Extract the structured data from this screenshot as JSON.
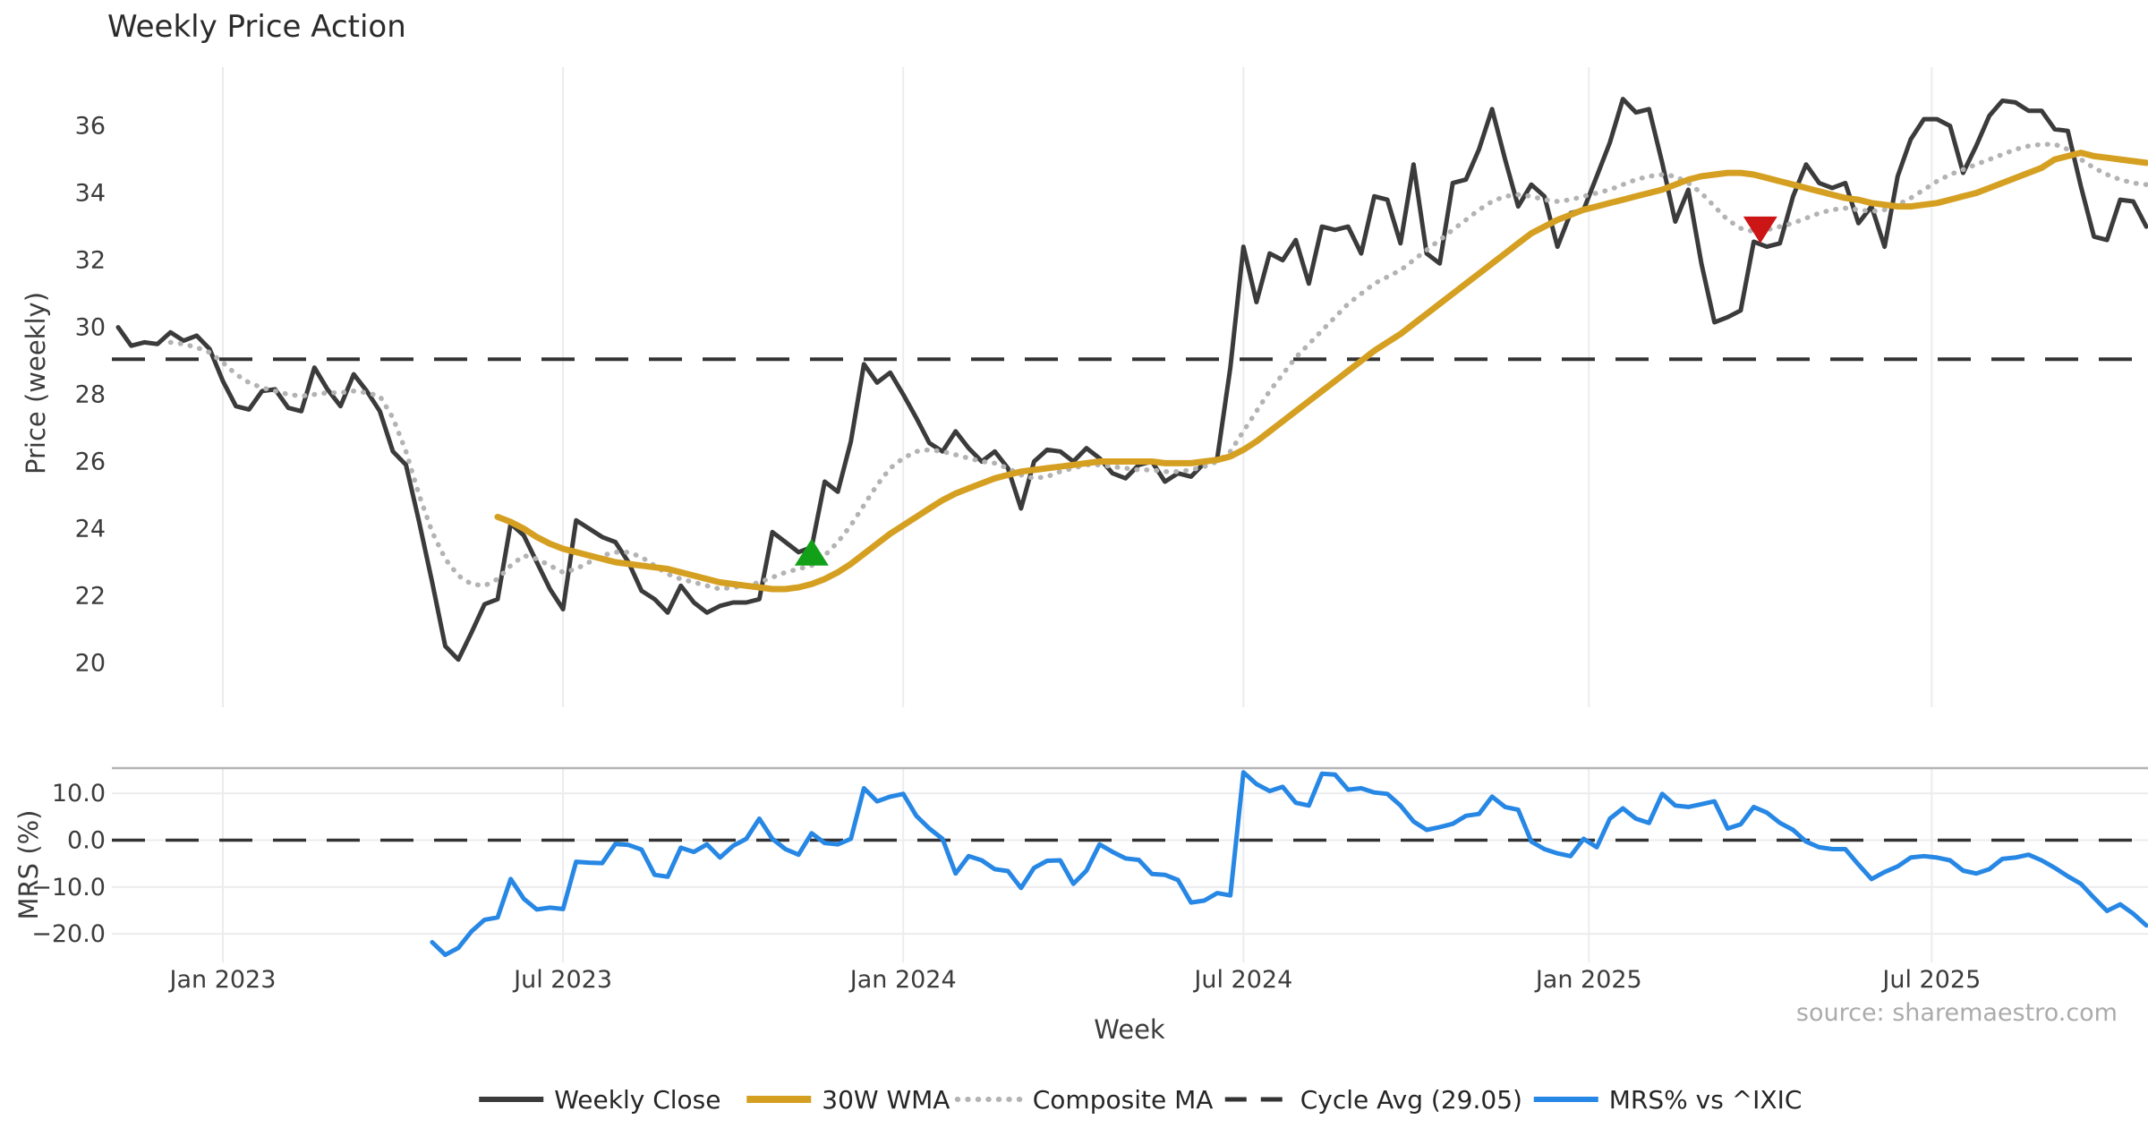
{
  "title": "Weekly Price Action",
  "source_credit": "source: sharemaestro.com",
  "colors": {
    "weekly_close": "#3b3b3b",
    "wma30": "#d5a021",
    "composite": "#b3b3b3",
    "cycle_avg": "#333333",
    "mrs": "#2787e4",
    "buy_marker": "#12a018",
    "sell_marker": "#cc1515",
    "grid": "#ececee",
    "mrs_top_spine": "#b4b4b4",
    "background": "#ffffff"
  },
  "legend": {
    "items": [
      {
        "label": "Weekly Close",
        "style": "solid",
        "color": "#3b3b3b",
        "width": 5
      },
      {
        "label": "30W WMA",
        "style": "solid",
        "color": "#d5a021",
        "width": 7
      },
      {
        "label": "Composite MA",
        "style": "dotted",
        "color": "#b3b3b3",
        "width": 5
      },
      {
        "label": "Cycle Avg (29.05)",
        "style": "dashed",
        "color": "#333333",
        "width": 4
      },
      {
        "label": "MRS% vs ^IXIC",
        "style": "solid",
        "color": "#2787e4",
        "width": 5
      }
    ]
  },
  "chart_data": [
    {
      "type": "line",
      "panel": "price",
      "title": "Weekly Price Action",
      "ylabel": "Price (weekly)",
      "ylim": [
        18.68,
        37.75
      ],
      "y_ticks": [
        {
          "v": 20,
          "label": "20"
        },
        {
          "v": 22,
          "label": "22"
        },
        {
          "v": 24,
          "label": "24"
        },
        {
          "v": 26,
          "label": "26"
        },
        {
          "v": 28,
          "label": "28"
        },
        {
          "v": 30,
          "label": "30"
        },
        {
          "v": 32,
          "label": "32"
        },
        {
          "v": 34,
          "label": "34"
        },
        {
          "v": 36,
          "label": "36"
        }
      ],
      "x_axis": {
        "label": "Week",
        "ticks": [
          {
            "week": 8.0,
            "label": "Jan 2023"
          },
          {
            "week": 34.0,
            "label": "Jul 2023"
          },
          {
            "week": 60.0,
            "label": "Jan 2024"
          },
          {
            "week": 86.0,
            "label": "Jul 2024"
          },
          {
            "week": 112.4,
            "label": "Jan 2025"
          },
          {
            "week": 138.6,
            "label": "Jul 2025"
          }
        ],
        "start_date": "Nov 2022",
        "end_date": "Oct 2025"
      },
      "cycle_avg_value": 29.05,
      "series": [
        {
          "name": "Weekly Close",
          "style": "solid",
          "color": "#3b3b3b",
          "width": 5,
          "start_week": 0,
          "values": [
            30.0,
            29.45,
            29.55,
            29.5,
            29.85,
            29.6,
            29.75,
            29.35,
            28.4,
            27.65,
            27.55,
            28.1,
            28.15,
            27.6,
            27.5,
            28.8,
            28.15,
            27.65,
            28.6,
            28.1,
            27.5,
            26.3,
            25.9,
            24.2,
            22.4,
            20.5,
            20.1,
            20.9,
            21.75,
            21.9,
            24.15,
            23.8,
            23.0,
            22.2,
            21.6,
            24.25,
            24.0,
            23.75,
            23.6,
            23.0,
            22.15,
            21.9,
            21.5,
            22.3,
            21.8,
            21.5,
            21.7,
            21.8,
            21.8,
            21.9,
            23.9,
            23.6,
            23.3,
            23.45,
            25.4,
            25.1,
            26.6,
            28.9,
            28.35,
            28.65,
            28.0,
            27.3,
            26.55,
            26.3,
            26.9,
            26.4,
            26.0,
            26.3,
            25.8,
            24.6,
            26.0,
            26.35,
            26.3,
            26.0,
            26.4,
            26.1,
            25.65,
            25.5,
            25.9,
            26.0,
            25.4,
            25.65,
            25.55,
            25.95,
            26.1,
            28.8,
            32.4,
            30.75,
            32.2,
            32.0,
            32.6,
            31.3,
            33.0,
            32.9,
            33.0,
            32.2,
            33.9,
            33.8,
            32.5,
            34.85,
            32.2,
            31.9,
            34.3,
            34.4,
            35.3,
            36.5,
            35.0,
            33.6,
            34.25,
            33.9,
            32.4,
            33.4,
            33.5,
            34.5,
            35.5,
            36.8,
            36.4,
            36.5,
            34.9,
            33.15,
            34.1,
            31.9,
            30.15,
            30.3,
            30.5,
            32.55,
            32.4,
            32.5,
            33.9,
            34.85,
            34.3,
            34.15,
            34.3,
            33.1,
            33.6,
            32.4,
            34.5,
            35.6,
            36.2,
            36.2,
            36.0,
            34.6,
            35.4,
            36.3,
            36.75,
            36.7,
            36.45,
            36.45,
            35.9,
            35.85,
            34.2,
            32.7,
            32.6,
            33.8,
            33.75,
            33.0
          ]
        },
        {
          "name": "30W WMA",
          "style": "solid",
          "color": "#d5a021",
          "width": 7,
          "start_week": 29,
          "values": [
            24.35,
            24.2,
            24.0,
            23.75,
            23.55,
            23.4,
            23.3,
            23.2,
            23.1,
            23.0,
            22.95,
            22.9,
            22.85,
            22.8,
            22.7,
            22.6,
            22.5,
            22.4,
            22.35,
            22.3,
            22.25,
            22.2,
            22.2,
            22.25,
            22.35,
            22.5,
            22.7,
            22.95,
            23.25,
            23.55,
            23.85,
            24.1,
            24.35,
            24.6,
            24.85,
            25.05,
            25.2,
            25.35,
            25.5,
            25.6,
            25.7,
            25.75,
            25.8,
            25.85,
            25.9,
            25.95,
            26.0,
            26.0,
            26.0,
            26.0,
            26.0,
            25.95,
            25.95,
            25.95,
            26.0,
            26.05,
            26.15,
            26.35,
            26.6,
            26.9,
            27.2,
            27.5,
            27.8,
            28.1,
            28.4,
            28.7,
            29.0,
            29.3,
            29.55,
            29.8,
            30.1,
            30.4,
            30.7,
            31.0,
            31.3,
            31.6,
            31.9,
            32.2,
            32.5,
            32.8,
            33.0,
            33.2,
            33.35,
            33.5,
            33.6,
            33.7,
            33.8,
            33.9,
            34.0,
            34.1,
            34.25,
            34.4,
            34.5,
            34.55,
            34.6,
            34.6,
            34.55,
            34.45,
            34.35,
            34.25,
            34.15,
            34.05,
            33.95,
            33.85,
            33.8,
            33.7,
            33.65,
            33.6,
            33.6,
            33.65,
            33.7,
            33.8,
            33.9,
            34.0,
            34.15,
            34.3,
            34.45,
            34.6,
            34.75,
            35.0,
            35.1,
            35.2,
            35.1,
            35.05,
            35.0,
            34.95,
            34.9
          ]
        },
        {
          "name": "Composite MA",
          "style": "dotted",
          "color": "#b3b3b3",
          "width": 4.5,
          "start_week": 4,
          "values": [
            29.55,
            29.5,
            29.4,
            29.25,
            28.95,
            28.6,
            28.35,
            28.2,
            28.1,
            28.0,
            27.95,
            28.0,
            28.05,
            28.05,
            28.1,
            28.05,
            27.95,
            27.3,
            26.3,
            25.0,
            23.9,
            23.1,
            22.6,
            22.35,
            22.3,
            22.5,
            22.9,
            23.2,
            23.1,
            22.9,
            22.7,
            22.8,
            23.0,
            23.2,
            23.3,
            23.3,
            23.15,
            22.9,
            22.65,
            22.5,
            22.4,
            22.3,
            22.2,
            22.25,
            22.3,
            22.4,
            22.55,
            22.7,
            22.8,
            22.9,
            23.2,
            23.6,
            24.1,
            24.7,
            25.3,
            25.8,
            26.1,
            26.3,
            26.35,
            26.3,
            26.2,
            26.1,
            26.0,
            25.95,
            25.8,
            25.6,
            25.5,
            25.55,
            25.7,
            25.8,
            25.9,
            25.9,
            25.85,
            25.8,
            25.75,
            25.75,
            25.7,
            25.7,
            25.75,
            25.85,
            26.0,
            26.3,
            26.9,
            27.5,
            28.1,
            28.6,
            29.1,
            29.5,
            29.9,
            30.3,
            30.7,
            31.0,
            31.3,
            31.5,
            31.7,
            32.0,
            32.3,
            32.6,
            32.9,
            33.2,
            33.5,
            33.75,
            33.9,
            33.95,
            33.9,
            33.8,
            33.75,
            33.8,
            33.9,
            34.0,
            34.1,
            34.25,
            34.4,
            34.5,
            34.55,
            34.5,
            34.3,
            34.0,
            33.6,
            33.2,
            32.95,
            32.85,
            32.9,
            33.0,
            33.1,
            33.25,
            33.4,
            33.5,
            33.55,
            33.5,
            33.45,
            33.5,
            33.65,
            33.85,
            34.1,
            34.35,
            34.55,
            34.7,
            34.85,
            35.0,
            35.15,
            35.3,
            35.4,
            35.45,
            35.45,
            35.3,
            35.0,
            34.75,
            34.55,
            34.4,
            34.3,
            34.25
          ]
        },
        {
          "name": "Cycle Avg (29.05)",
          "style": "dashed",
          "color": "#333333",
          "width": 4,
          "horizontal_value": 29.05
        }
      ],
      "markers": [
        {
          "name": "buy-signal",
          "shape": "triangle-up",
          "color": "#12a018",
          "week": 53,
          "value": 23.3
        },
        {
          "name": "sell-signal",
          "shape": "triangle-down",
          "color": "#cc1515",
          "week": 125.5,
          "value": 32.9
        }
      ]
    },
    {
      "type": "line",
      "panel": "mrs",
      "ylabel": "MRS (%)",
      "xlabel": "Week",
      "ylim": [
        -26.1,
        15.4
      ],
      "y_ticks": [
        {
          "v": 10,
          "label": "10.0"
        },
        {
          "v": 0,
          "label": "0.0"
        },
        {
          "v": -10,
          "label": "−10.0"
        },
        {
          "v": -20,
          "label": "−20.0"
        }
      ],
      "zero_line_value": 0.0,
      "series": [
        {
          "name": "MRS% vs ^IXIC",
          "style": "solid",
          "color": "#2787e4",
          "width": 5,
          "start_week": 24,
          "values": [
            -21.8,
            -24.5,
            -23.0,
            -19.5,
            -17.0,
            -16.5,
            -8.3,
            -12.5,
            -14.8,
            -14.4,
            -14.7,
            -4.6,
            -4.8,
            -4.9,
            -0.8,
            -1.0,
            -2.0,
            -7.4,
            -7.8,
            -1.6,
            -2.5,
            -0.9,
            -3.7,
            -1.2,
            0.3,
            4.6,
            0.3,
            -1.9,
            -3.1,
            1.5,
            -0.6,
            -0.9,
            0.3,
            11.1,
            8.3,
            9.3,
            9.9,
            5.2,
            2.5,
            0.3,
            -7.1,
            -3.4,
            -4.3,
            -6.2,
            -6.6,
            -10.2,
            -5.9,
            -4.4,
            -4.3,
            -9.3,
            -6.5,
            -0.9,
            -2.5,
            -3.9,
            -4.2,
            -7.2,
            -7.4,
            -8.5,
            -13.3,
            -12.9,
            -11.3,
            -11.8,
            14.5,
            12.0,
            10.5,
            11.4,
            8.0,
            7.4,
            14.2,
            14.0,
            10.8,
            11.1,
            10.2,
            9.9,
            7.4,
            4.0,
            2.2,
            2.8,
            3.5,
            5.2,
            5.6,
            9.3,
            7.1,
            6.5,
            -0.3,
            -1.9,
            -2.8,
            -3.4,
            0.3,
            -1.5,
            4.6,
            6.8,
            4.6,
            3.7,
            9.9,
            7.4,
            7.1,
            7.7,
            8.3,
            2.5,
            3.4,
            7.1,
            5.9,
            3.7,
            2.2,
            -0.3,
            -1.5,
            -1.9,
            -1.9,
            -5.2,
            -8.3,
            -6.8,
            -5.6,
            -3.7,
            -3.4,
            -3.7,
            -4.3,
            -6.5,
            -7.1,
            -6.2,
            -4.0,
            -3.7,
            -3.1,
            -4.3,
            -5.9,
            -7.7,
            -9.3,
            -12.3,
            -15.1,
            -13.7,
            -15.7,
            -18.2
          ]
        }
      ]
    }
  ]
}
